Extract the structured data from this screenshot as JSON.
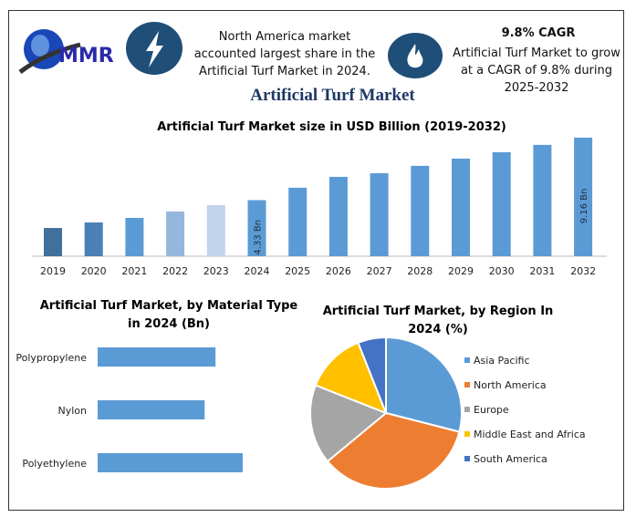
{
  "header": {
    "logo_text": "MMR",
    "highlight1": "North America market accounted largest share in the Artificial Turf Market in 2024.",
    "highlight2_title": "9.8% CAGR",
    "highlight2": "Artificial Turf Market to grow at a CAGR of 9.8% during 2025-2032",
    "main_title": "Artificial Turf Market",
    "icons": [
      "lightning-icon",
      "flame-icon"
    ]
  },
  "chart_data": [
    {
      "type": "bar",
      "title": "Artificial Turf Market size in USD Billion (2019-2032)",
      "categories": [
        "2019",
        "2020",
        "2021",
        "2022",
        "2023",
        "2024",
        "2025",
        "2026",
        "2027",
        "2028",
        "2029",
        "2030",
        "2031",
        "2032"
      ],
      "values": [
        2.18,
        2.61,
        2.96,
        3.45,
        3.95,
        4.33,
        5.29,
        6.13,
        6.41,
        6.98,
        7.54,
        8.03,
        8.6,
        9.16
      ],
      "data_labels": {
        "2024": "4.33 Bn",
        "2032": "9.16 Bn"
      },
      "colors": [
        "#41709b",
        "#4a80b5",
        "#5b9bd5",
        "#95b6dd",
        "#bfd3eb",
        "#5b9bd5",
        "#5b9bd5",
        "#5b9bd5",
        "#5b9bd5",
        "#5b9bd5",
        "#5b9bd5",
        "#5b9bd5",
        "#5b9bd5",
        "#5b9bd5"
      ],
      "grid": false
    },
    {
      "type": "bar",
      "orientation": "horizontal",
      "title": "Artificial Turf Market, by Material Type in 2024 (Bn)",
      "categories": [
        "Polypropylene",
        "Nylon",
        "Polyethylene"
      ],
      "values": [
        1.3,
        1.18,
        1.6
      ],
      "color": "#5b9bd5",
      "grid": false
    },
    {
      "type": "pie",
      "title": "Artificial Turf Market, by Region In 2024 (%)",
      "categories": [
        "Asia Pacific",
        "North America",
        "Europe",
        "Middle East and Africa",
        "South America"
      ],
      "values": [
        29,
        35,
        17,
        13,
        6
      ],
      "colors": [
        "#5b9bd5",
        "#ed7d31",
        "#a5a5a5",
        "#ffc000",
        "#4472c4"
      ],
      "legend": "right"
    }
  ]
}
